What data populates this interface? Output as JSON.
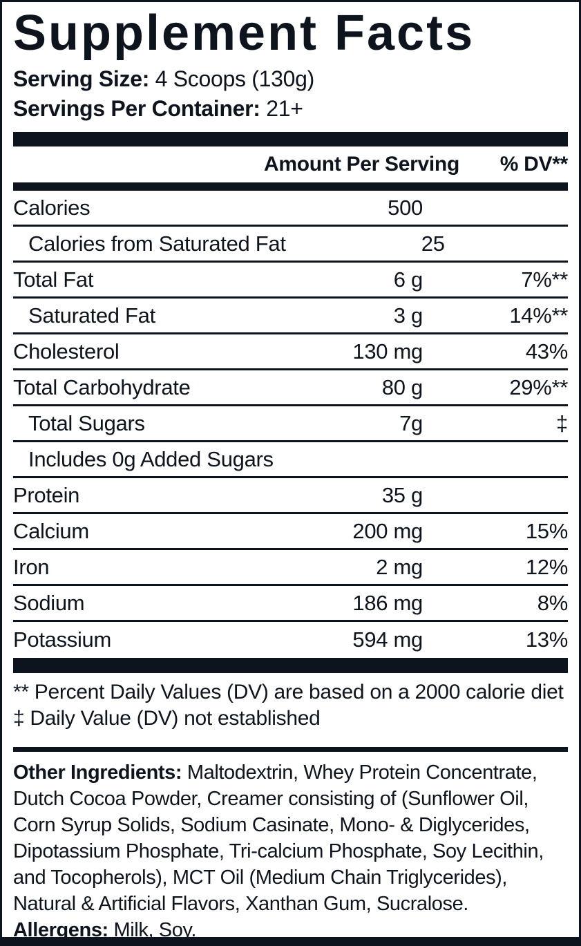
{
  "title": "Supplement Facts",
  "serving": {
    "size_label": "Serving Size:",
    "size_value": "4 Scoops (130g)",
    "per_container_label": "Servings Per Container:",
    "per_container_value": "21+"
  },
  "table": {
    "header": {
      "amount": "Amount Per Serving",
      "dv": "% DV**"
    },
    "rows": [
      {
        "label": "Calories",
        "amount": "500",
        "dv": "",
        "indent": false
      },
      {
        "label": "Calories from Saturated Fat",
        "amount": "25",
        "dv": "",
        "indent": true
      },
      {
        "label": "Total Fat",
        "amount": "6 g",
        "dv": "7%**",
        "indent": false
      },
      {
        "label": "Saturated Fat",
        "amount": "3 g",
        "dv": "14%**",
        "indent": true
      },
      {
        "label": "Cholesterol",
        "amount": "130 mg",
        "dv": "43%",
        "indent": false
      },
      {
        "label": "Total Carbohydrate",
        "amount": "80 g",
        "dv": "29%**",
        "indent": false
      },
      {
        "label": "Total Sugars",
        "amount": "7g",
        "dv": "‡",
        "indent": true
      },
      {
        "label": "Includes 0g Added Sugars",
        "amount": "",
        "dv": "",
        "indent": true
      },
      {
        "label": "Protein",
        "amount": "35 g",
        "dv": "",
        "indent": false
      },
      {
        "label": "Calcium",
        "amount": "200 mg",
        "dv": "15%",
        "indent": false
      },
      {
        "label": "Iron",
        "amount": "2 mg",
        "dv": "12%",
        "indent": false
      },
      {
        "label": "Sodium",
        "amount": "186 mg",
        "dv": "8%",
        "indent": false
      },
      {
        "label": "Potassium",
        "amount": "594 mg",
        "dv": "13%",
        "indent": false
      }
    ]
  },
  "footnotes": [
    "** Percent Daily Values (DV) are based on a 2000 calorie diet",
    "‡ Daily Value (DV) not established"
  ],
  "other_ingredients": {
    "label": "Other Ingredients:",
    "text": "Maltodextrin, Whey Protein Concentrate, Dutch Cocoa Powder, Creamer consisting of (Sunflower Oil, Corn Syrup Solids, Sodium Casinate, Mono- & Diglycerides, Dipotassium Phosphate, Tri-calcium Phosphate, Soy Lecithin, and Tocopherols), MCT Oil (Medium Chain Triglycerides), Natural & Artificial Flavors, Xanthan Gum, Sucralose."
  },
  "allergens": {
    "label": "Allergens:",
    "text": "Milk, Soy."
  },
  "colors": {
    "ink": "#0e141d",
    "background": "#ffffff"
  }
}
